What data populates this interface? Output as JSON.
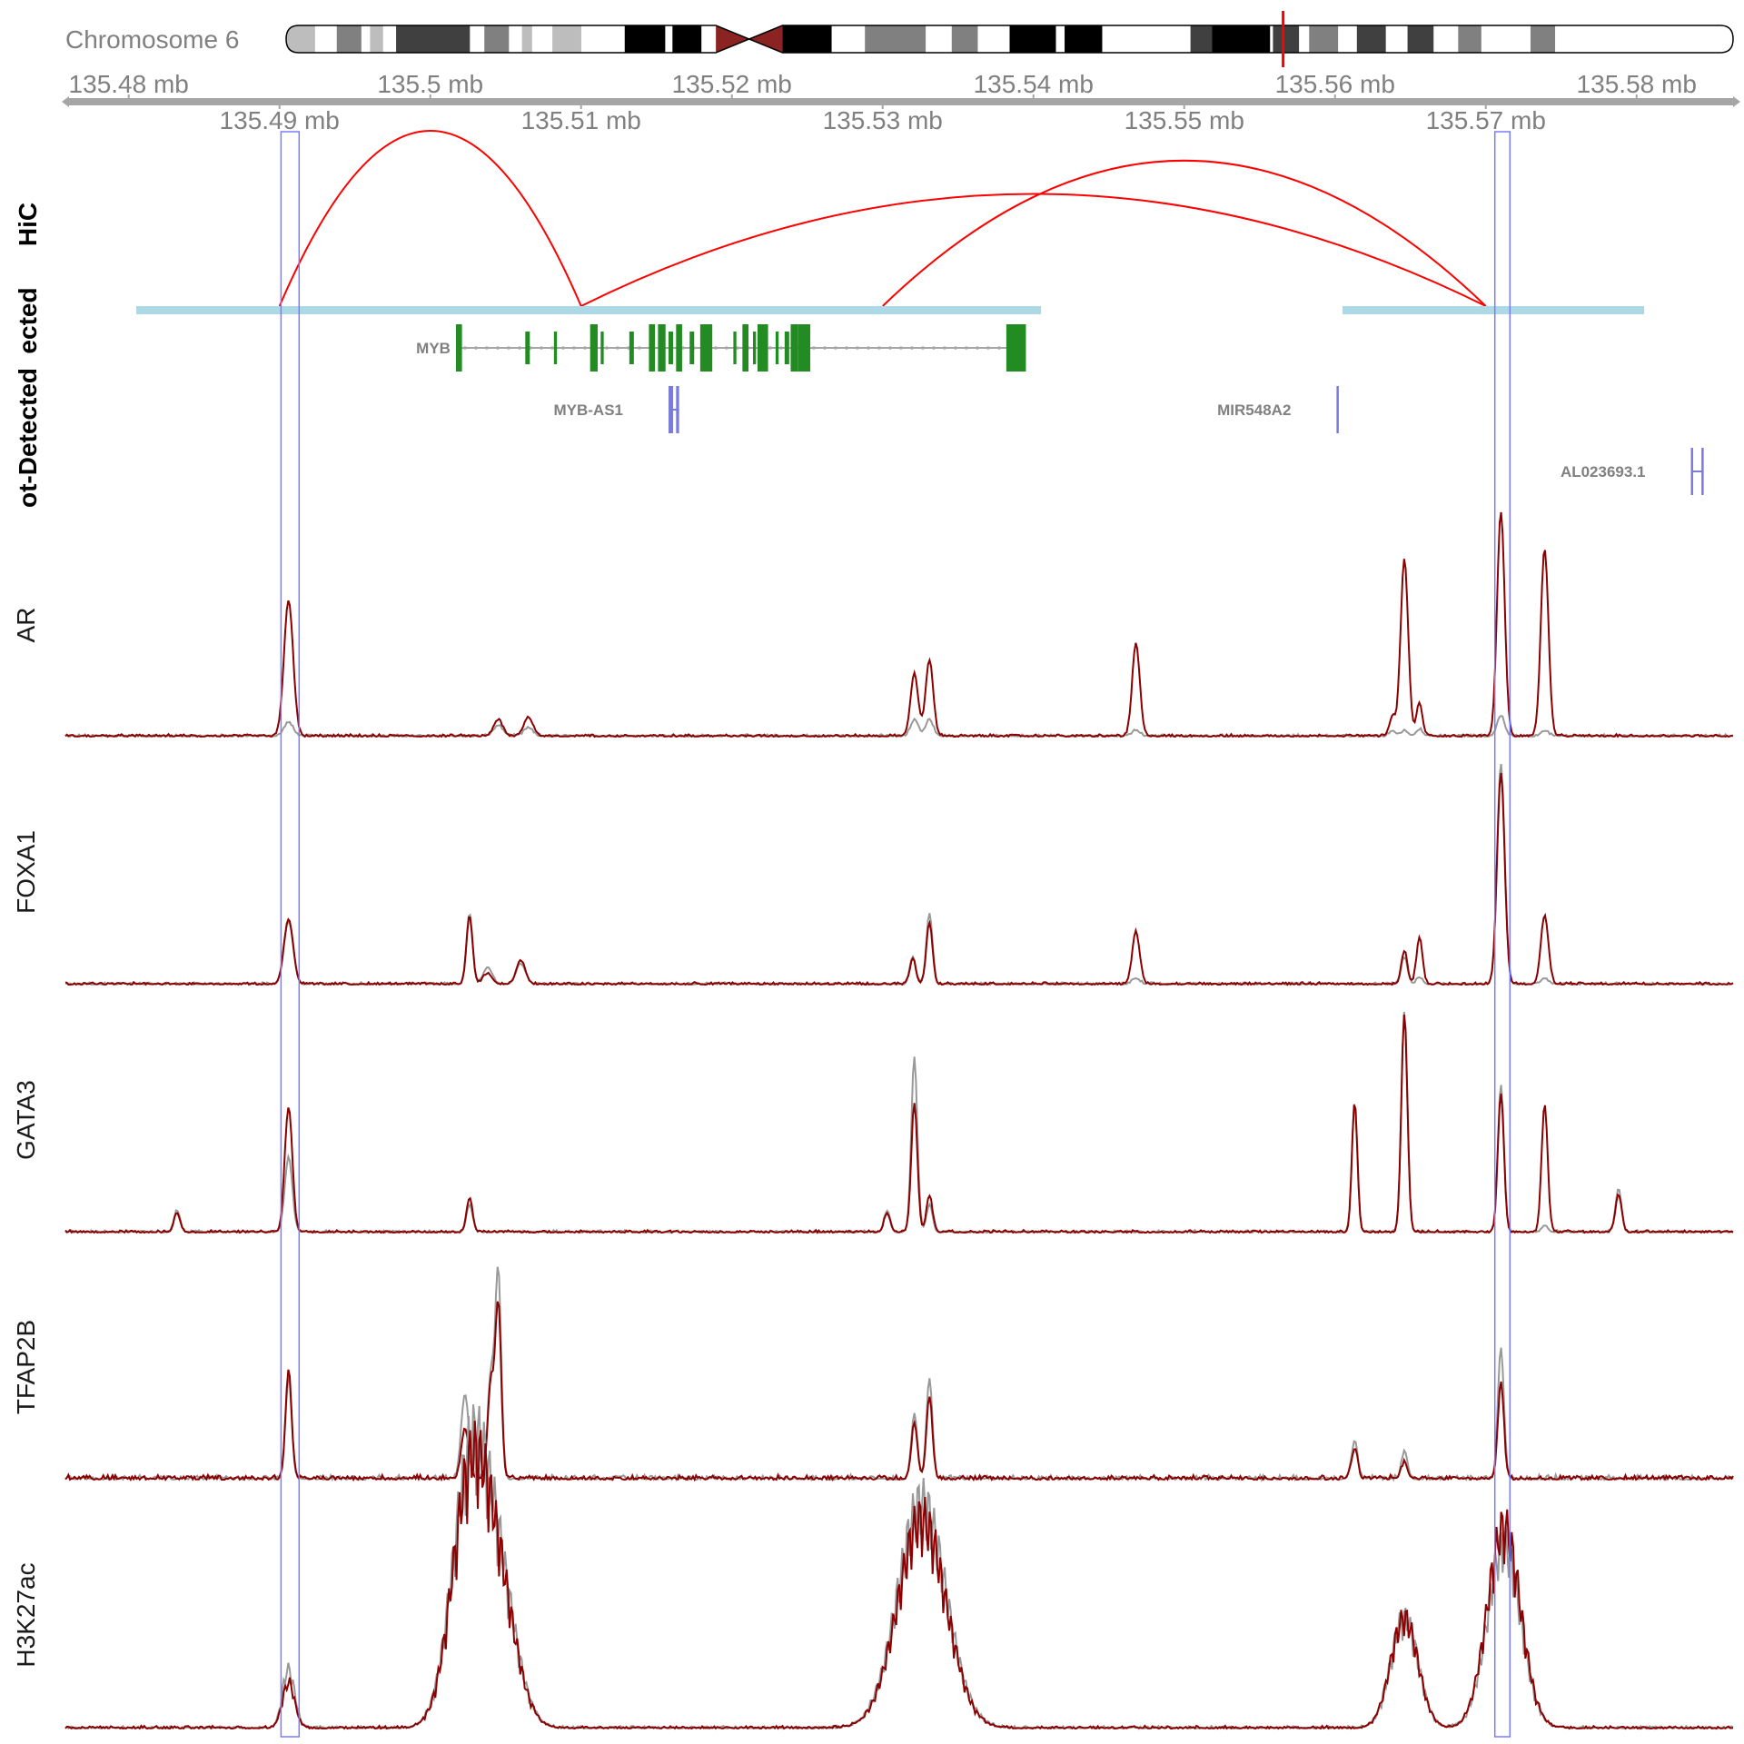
{
  "chromosome": {
    "label": "Chromosome 6",
    "bands": [
      {
        "start": 0.0,
        "end": 0.02,
        "shade": "#bdbdbd"
      },
      {
        "start": 0.02,
        "end": 0.035,
        "shade": "#ffffff"
      },
      {
        "start": 0.035,
        "end": 0.052,
        "shade": "#808080"
      },
      {
        "start": 0.052,
        "end": 0.058,
        "shade": "#ffffff"
      },
      {
        "start": 0.058,
        "end": 0.067,
        "shade": "#bdbdbd"
      },
      {
        "start": 0.067,
        "end": 0.076,
        "shade": "#ffffff"
      },
      {
        "start": 0.076,
        "end": 0.127,
        "shade": "#404040"
      },
      {
        "start": 0.127,
        "end": 0.137,
        "shade": "#ffffff"
      },
      {
        "start": 0.137,
        "end": 0.154,
        "shade": "#808080"
      },
      {
        "start": 0.154,
        "end": 0.163,
        "shade": "#ffffff"
      },
      {
        "start": 0.163,
        "end": 0.17,
        "shade": "#bdbdbd"
      },
      {
        "start": 0.17,
        "end": 0.184,
        "shade": "#ffffff"
      },
      {
        "start": 0.184,
        "end": 0.204,
        "shade": "#bdbdbd"
      },
      {
        "start": 0.204,
        "end": 0.234,
        "shade": "#ffffff"
      },
      {
        "start": 0.234,
        "end": 0.262,
        "shade": "#000000"
      },
      {
        "start": 0.262,
        "end": 0.267,
        "shade": "#ffffff"
      },
      {
        "start": 0.267,
        "end": 0.287,
        "shade": "#000000"
      },
      {
        "start": 0.287,
        "end": 0.297,
        "shade": "#ffffff"
      },
      {
        "start": 0.297,
        "end": 0.32,
        "shade": "#8b2323",
        "type": "centromere-left"
      },
      {
        "start": 0.32,
        "end": 0.343,
        "shade": "#8b2323",
        "type": "centromere-right"
      },
      {
        "start": 0.343,
        "end": 0.377,
        "shade": "#000000"
      },
      {
        "start": 0.377,
        "end": 0.4,
        "shade": "#ffffff"
      },
      {
        "start": 0.4,
        "end": 0.442,
        "shade": "#808080"
      },
      {
        "start": 0.442,
        "end": 0.46,
        "shade": "#ffffff"
      },
      {
        "start": 0.46,
        "end": 0.478,
        "shade": "#808080"
      },
      {
        "start": 0.478,
        "end": 0.5,
        "shade": "#ffffff"
      },
      {
        "start": 0.5,
        "end": 0.532,
        "shade": "#000000"
      },
      {
        "start": 0.532,
        "end": 0.538,
        "shade": "#ffffff"
      },
      {
        "start": 0.538,
        "end": 0.564,
        "shade": "#000000"
      },
      {
        "start": 0.564,
        "end": 0.582,
        "shade": "#ffffff"
      },
      {
        "start": 0.582,
        "end": 0.58,
        "shade": "#ffffff"
      },
      {
        "start": 0.58,
        "end": 0.59,
        "shade": "#ffffff"
      },
      {
        "start": 0.59,
        "end": 0.6,
        "shade": "#ffffff"
      },
      {
        "start": 0.6,
        "end": 0.625,
        "shade": "#ffffff"
      },
      {
        "start": 0.625,
        "end": 0.64,
        "shade": "#404040"
      },
      {
        "start": 0.64,
        "end": 0.68,
        "shade": "#000000"
      },
      {
        "start": 0.68,
        "end": 0.682,
        "shade": "#ffffff"
      },
      {
        "start": 0.682,
        "end": 0.7,
        "shade": "#404040"
      },
      {
        "start": 0.7,
        "end": 0.707,
        "shade": "#ffffff"
      },
      {
        "start": 0.707,
        "end": 0.727,
        "shade": "#808080"
      },
      {
        "start": 0.727,
        "end": 0.74,
        "shade": "#ffffff"
      },
      {
        "start": 0.74,
        "end": 0.76,
        "shade": "#404040"
      },
      {
        "start": 0.76,
        "end": 0.775,
        "shade": "#ffffff"
      },
      {
        "start": 0.775,
        "end": 0.793,
        "shade": "#404040"
      },
      {
        "start": 0.793,
        "end": 0.81,
        "shade": "#ffffff"
      },
      {
        "start": 0.81,
        "end": 0.826,
        "shade": "#808080"
      },
      {
        "start": 0.826,
        "end": 0.86,
        "shade": "#ffffff"
      },
      {
        "start": 0.86,
        "end": 0.877,
        "shade": "#808080"
      },
      {
        "start": 0.877,
        "end": 0.9,
        "shade": "#ffffff"
      },
      {
        "start": 0.9,
        "end": 1.0,
        "shade": "#ffffff"
      }
    ],
    "highlight_position": 0.689,
    "highlight_color": "#ff0000"
  },
  "axis": {
    "top_ticks": [
      {
        "value": 135.48,
        "label": "135.48 mb"
      },
      {
        "value": 135.5,
        "label": "135.5 mb"
      },
      {
        "value": 135.52,
        "label": "135.52 mb"
      },
      {
        "value": 135.54,
        "label": "135.54 mb"
      },
      {
        "value": 135.56,
        "label": "135.56 mb"
      },
      {
        "value": 135.58,
        "label": "135.58 mb"
      }
    ],
    "bottom_ticks": [
      {
        "value": 135.49,
        "label": "135.49 mb"
      },
      {
        "value": 135.51,
        "label": "135.51 mb"
      },
      {
        "value": 135.53,
        "label": "135.53 mb"
      },
      {
        "value": 135.55,
        "label": "135.55 mb"
      },
      {
        "value": 135.57,
        "label": "135.57 mb"
      }
    ],
    "range_mb": [
      135.4758,
      135.5864
    ]
  },
  "tracks": {
    "hic_label": "HiC",
    "detected_label": "ot-Detected",
    "detected_overlay_label": "ected",
    "signal_labels": [
      "AR",
      "FOXA1",
      "GATA3",
      "TFAP2B",
      "H3K27ac"
    ]
  },
  "hic_arcs": [
    {
      "start": 135.49,
      "end": 135.51,
      "peak_height": 1.0
    },
    {
      "start": 135.51,
      "end": 135.57,
      "peak_height": 0.64
    },
    {
      "start": 135.53,
      "end": 135.57,
      "peak_height": 0.83
    }
  ],
  "detected_regions": [
    {
      "start": 135.4805,
      "end": 135.5405
    },
    {
      "start": 135.5605,
      "end": 135.5805
    }
  ],
  "genes": [
    {
      "name": "MYB",
      "start": 135.5017,
      "end": 135.5395,
      "strand": "+",
      "row": 0,
      "color": "#228b22",
      "exons": [
        [
          135.5017,
          135.5021
        ],
        [
          135.5063,
          135.5066
        ],
        [
          135.5082,
          135.5084
        ],
        [
          135.5106,
          135.5111
        ],
        [
          135.5113,
          135.5115
        ],
        [
          135.5132,
          135.5135
        ],
        [
          135.5145,
          135.5149
        ],
        [
          135.5151,
          135.5156
        ],
        [
          135.5158,
          135.5161
        ],
        [
          135.5163,
          135.5167
        ],
        [
          135.5172,
          135.5175
        ],
        [
          135.5179,
          135.5187
        ],
        [
          135.5201,
          135.5203
        ],
        [
          135.5207,
          135.5211
        ],
        [
          135.5214,
          135.5216
        ],
        [
          135.5217,
          135.5224
        ],
        [
          135.5229,
          135.5231
        ],
        [
          135.5235,
          135.5238
        ],
        [
          135.5239,
          135.5244
        ],
        [
          135.5244,
          135.5252
        ],
        [
          135.5382,
          135.5395
        ]
      ]
    },
    {
      "name": "MYB-AS1",
      "start": 135.5158,
      "end": 135.5165,
      "strand": "-",
      "row": 1,
      "color": "#7b7bdb",
      "exons": [
        [
          135.5158,
          135.5161
        ],
        [
          135.5163,
          135.5165
        ]
      ]
    },
    {
      "name": "MIR548A2",
      "start": 135.5601,
      "end": 135.5602,
      "strand": "+",
      "row": 1,
      "color": "#7b7bdb",
      "exons": [
        [
          135.5601,
          135.5602
        ]
      ]
    },
    {
      "name": "AL023693.1",
      "start": 135.5836,
      "end": 135.5844,
      "strand": "+",
      "row": 2,
      "color": "#7b7bdb",
      "exons": [
        [
          135.5836,
          135.5837
        ],
        [
          135.5843,
          135.5844
        ]
      ]
    }
  ],
  "highlight_windows": [
    {
      "start": 135.4901,
      "end": 135.4913
    },
    {
      "start": 135.5706,
      "end": 135.5716
    }
  ],
  "signal_colors": {
    "primary": "#8b0000",
    "secondary": "#999999",
    "highlight_box": "#7b7bff"
  },
  "peaks": {
    "AR": [
      {
        "pos": 135.4906,
        "red": 1.0,
        "gray": 0.1,
        "w": 0.0003
      },
      {
        "pos": 135.5045,
        "red": 0.12,
        "gray": 0.08,
        "w": 0.0003
      },
      {
        "pos": 135.5065,
        "red": 0.14,
        "gray": 0.06,
        "w": 0.0003
      },
      {
        "pos": 135.5321,
        "red": 0.46,
        "gray": 0.12,
        "w": 0.00025
      },
      {
        "pos": 135.5331,
        "red": 0.56,
        "gray": 0.12,
        "w": 0.00025
      },
      {
        "pos": 135.5468,
        "red": 0.68,
        "gray": 0.04,
        "w": 0.00025
      },
      {
        "pos": 135.5646,
        "red": 1.3,
        "gray": 0.04,
        "w": 0.00025
      },
      {
        "pos": 135.5656,
        "red": 0.24,
        "gray": 0.05,
        "w": 0.0002
      },
      {
        "pos": 135.5638,
        "red": 0.14,
        "gray": 0.04,
        "w": 0.0002
      },
      {
        "pos": 135.571,
        "red": 1.65,
        "gray": 0.15,
        "w": 0.00025
      },
      {
        "pos": 135.5739,
        "red": 1.38,
        "gray": 0.04,
        "w": 0.00025
      }
    ],
    "FOXA1": [
      {
        "pos": 135.4906,
        "red": 0.48,
        "gray": 0.46,
        "w": 0.0003
      },
      {
        "pos": 135.5026,
        "red": 0.5,
        "gray": 0.52,
        "w": 0.0002
      },
      {
        "pos": 135.5038,
        "red": 0.08,
        "gray": 0.12,
        "w": 0.0003
      },
      {
        "pos": 135.506,
        "red": 0.17,
        "gray": 0.15,
        "w": 0.0003
      },
      {
        "pos": 135.5331,
        "red": 0.45,
        "gray": 0.52,
        "w": 0.0002
      },
      {
        "pos": 135.532,
        "red": 0.18,
        "gray": 0.2,
        "w": 0.0002
      },
      {
        "pos": 135.5468,
        "red": 0.38,
        "gray": 0.04,
        "w": 0.00025
      },
      {
        "pos": 135.5646,
        "red": 0.24,
        "gray": 0.2,
        "w": 0.0002
      },
      {
        "pos": 135.5656,
        "red": 0.34,
        "gray": 0.05,
        "w": 0.0002
      },
      {
        "pos": 135.571,
        "red": 1.55,
        "gray": 1.62,
        "w": 0.00025
      },
      {
        "pos": 135.5739,
        "red": 0.5,
        "gray": 0.04,
        "w": 0.00025
      }
    ],
    "GATA3": [
      {
        "pos": 135.4832,
        "red": 0.14,
        "gray": 0.16,
        "w": 0.0002
      },
      {
        "pos": 135.4906,
        "red": 0.92,
        "gray": 0.55,
        "w": 0.00025
      },
      {
        "pos": 135.5026,
        "red": 0.25,
        "gray": 0.2,
        "w": 0.0002
      },
      {
        "pos": 135.5321,
        "red": 0.95,
        "gray": 1.28,
        "w": 0.0002
      },
      {
        "pos": 135.5331,
        "red": 0.27,
        "gray": 0.2,
        "w": 0.0002
      },
      {
        "pos": 135.5303,
        "red": 0.14,
        "gray": 0.16,
        "w": 0.0002
      },
      {
        "pos": 135.5613,
        "red": 0.95,
        "gray": 0.96,
        "w": 0.00018
      },
      {
        "pos": 135.5646,
        "red": 1.6,
        "gray": 1.62,
        "w": 0.0002
      },
      {
        "pos": 135.571,
        "red": 1.02,
        "gray": 1.08,
        "w": 0.0002
      },
      {
        "pos": 135.5739,
        "red": 0.94,
        "gray": 0.04,
        "w": 0.0002
      },
      {
        "pos": 135.5788,
        "red": 0.28,
        "gray": 0.32,
        "w": 0.0002
      }
    ],
    "TFAP2B": [
      {
        "pos": 135.4906,
        "red": 0.8,
        "gray": 0.74,
        "w": 0.0002
      },
      {
        "pos": 135.5023,
        "red": 0.36,
        "gray": 0.62,
        "w": 0.00025
      },
      {
        "pos": 135.504,
        "red": 0.68,
        "gray": 0.74,
        "w": 0.0002
      },
      {
        "pos": 135.5045,
        "red": 1.28,
        "gray": 1.54,
        "w": 0.0002
      },
      {
        "pos": 135.5321,
        "red": 0.4,
        "gray": 0.48,
        "w": 0.0002
      },
      {
        "pos": 135.5331,
        "red": 0.6,
        "gray": 0.72,
        "w": 0.0002
      },
      {
        "pos": 135.5613,
        "red": 0.22,
        "gray": 0.28,
        "w": 0.0002
      },
      {
        "pos": 135.5646,
        "red": 0.12,
        "gray": 0.2,
        "w": 0.0002
      },
      {
        "pos": 135.571,
        "red": 0.7,
        "gray": 0.96,
        "w": 0.0002
      }
    ],
    "H3K27ac": [
      {
        "pos": 135.4906,
        "red": 0.32,
        "gray": 0.42,
        "w": 0.0004
      },
      {
        "pos": 135.5026,
        "red": 1.65,
        "gray": 1.75,
        "w": 0.0012
      },
      {
        "pos": 135.5045,
        "red": 0.9,
        "gray": 0.95,
        "w": 0.0012
      },
      {
        "pos": 135.5326,
        "red": 1.48,
        "gray": 1.6,
        "w": 0.0016
      },
      {
        "pos": 135.5646,
        "red": 0.78,
        "gray": 0.78,
        "w": 0.0009
      },
      {
        "pos": 135.5712,
        "red": 1.42,
        "gray": 1.3,
        "w": 0.0011
      }
    ]
  }
}
